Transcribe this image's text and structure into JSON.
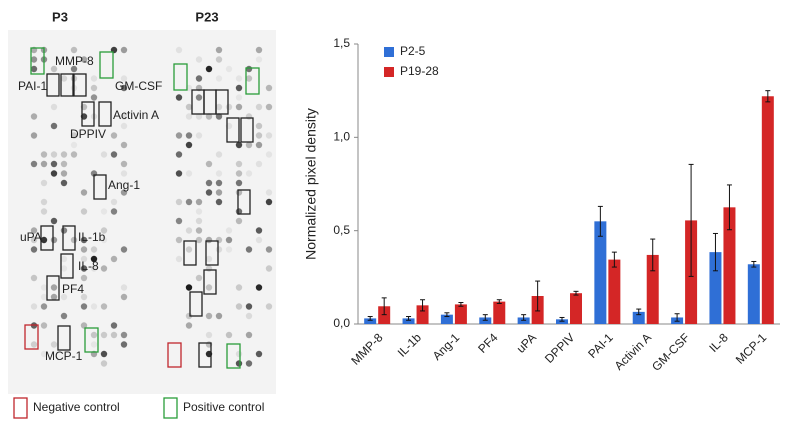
{
  "blot": {
    "titles": [
      "P3",
      "P23"
    ],
    "labels": [
      "MMP-8",
      "PAI-1",
      "GM-CSF",
      "Activin A",
      "DPPIV",
      "Ang-1",
      "uPA",
      "IL-1b",
      "IL-8",
      "PF4",
      "MCP-1"
    ],
    "legend": [
      "Negative control",
      "Positive control"
    ]
  },
  "chart_data": {
    "type": "bar",
    "y_label": "Normalized pixel density",
    "categories": [
      "MMP-8",
      "IL-1b",
      "Ang-1",
      "PF4",
      "uPA",
      "DPPIV",
      "PAI-1",
      "Activin A",
      "GM-CSF",
      "IL-8",
      "MCP-1"
    ],
    "series": [
      {
        "name": "P2-5",
        "color": "#2f6fd6",
        "values": [
          0.03,
          0.03,
          0.05,
          0.035,
          0.035,
          0.025,
          0.55,
          0.065,
          0.035,
          0.385,
          0.32
        ],
        "errors": [
          0.01,
          0.01,
          0.01,
          0.015,
          0.015,
          0.01,
          0.08,
          0.015,
          0.02,
          0.1,
          0.015
        ]
      },
      {
        "name": "P19-28",
        "color": "#d42626",
        "values": [
          0.095,
          0.1,
          0.105,
          0.12,
          0.15,
          0.165,
          0.345,
          0.37,
          0.555,
          0.625,
          1.22
        ],
        "errors": [
          0.045,
          0.03,
          0.01,
          0.01,
          0.08,
          0.01,
          0.04,
          0.085,
          0.3,
          0.12,
          0.03
        ]
      }
    ],
    "ylim": [
      0,
      1.5
    ],
    "yticks": [
      {
        "value": 0,
        "label": "0,0"
      },
      {
        "value": 0.5,
        "label": "0,5"
      },
      {
        "value": 1,
        "label": "1,0"
      },
      {
        "value": 1.5,
        "label": "1,5"
      }
    ],
    "legend": "upper left"
  }
}
